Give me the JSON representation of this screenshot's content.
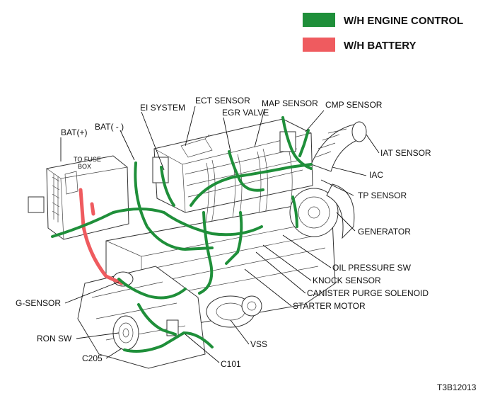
{
  "legend": {
    "engine_control": {
      "label": "W/H ENGINE CONTROL",
      "color": "#1f8f3a"
    },
    "battery": {
      "label": "W/H BATTERY",
      "color": "#ef5b5f"
    }
  },
  "labels": {
    "bat_plus": "BAT(+)",
    "bat_minus": "BAT( - )",
    "to_fuse_box_1": "TO FUSE",
    "to_fuse_box_2": "BOX",
    "ei_system": "EI SYSTEM",
    "ect_sensor": "ECT SENSOR",
    "egr_valve": "EGR VALVE",
    "map_sensor": "MAP SENSOR",
    "cmp_sensor": "CMP SENSOR",
    "iat_sensor": "IAT SENSOR",
    "iac": "IAC",
    "tp_sensor": "TP SENSOR",
    "generator": "GENERATOR",
    "oil_pressure_sw": "OIL PRESSURE SW",
    "knock_sensor": "KNOCK SENSOR",
    "canister_purge_solenoid": "CANISTER PURGE SOLENOID",
    "starter_motor": "STARTER MOTOR",
    "g_sensor": "G-SENSOR",
    "ron_sw": "RON SW",
    "c205": "C205",
    "c101": "C101",
    "vss": "VSS"
  },
  "figure_id": "T3B12013"
}
